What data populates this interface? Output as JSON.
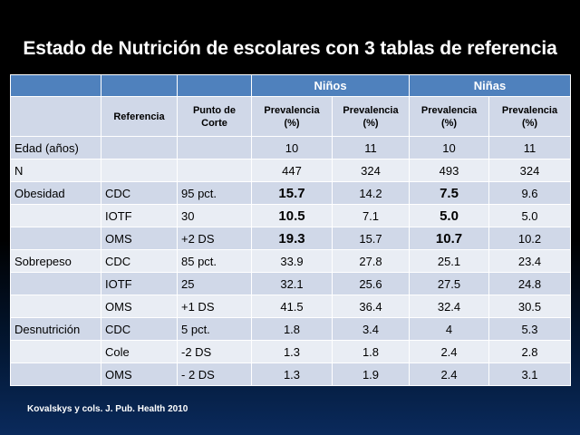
{
  "title": "Estado de Nutrición de escolares con 3 tablas de referencia",
  "table": {
    "group_headers": {
      "ninos": "Niños",
      "ninas": "Niñas"
    },
    "columns": {
      "referencia": "Referencia",
      "punto_corte": "Punto de Corte",
      "prev_ninos_1": "Prevalencia (%)",
      "prev_ninos_2": "Prevalencia (%)",
      "prev_ninas_1": "Prevalencia (%)",
      "prev_ninas_2": "Prevalencia (%)"
    },
    "rows": [
      {
        "label": "Edad (años)",
        "ref": "",
        "cut": "",
        "v": [
          "10",
          "11",
          "10",
          "11"
        ]
      },
      {
        "label": "N",
        "ref": "",
        "cut": "",
        "v": [
          "447",
          "324",
          "493",
          "324"
        ]
      },
      {
        "label": "Obesidad",
        "ref": "CDC",
        "cut": "95 pct.",
        "v": [
          "15.7",
          "14.2",
          "7.5",
          "9.6"
        ],
        "bold": [
          true,
          false,
          true,
          false
        ]
      },
      {
        "label": "",
        "ref": "IOTF",
        "cut": "30",
        "v": [
          "10.5",
          "7.1",
          "5.0",
          "5.0"
        ],
        "bold": [
          true,
          false,
          true,
          false
        ]
      },
      {
        "label": "",
        "ref": "OMS",
        "cut": "+2 DS",
        "v": [
          "19.3",
          "15.7",
          "10.7",
          "10.2"
        ],
        "bold": [
          true,
          false,
          true,
          false
        ]
      },
      {
        "label": "Sobrepeso",
        "ref": "CDC",
        "cut": "85 pct.",
        "v": [
          "33.9",
          "27.8",
          "25.1",
          "23.4"
        ]
      },
      {
        "label": "",
        "ref": "IOTF",
        "cut": "25",
        "v": [
          "32.1",
          "25.6",
          "27.5",
          "24.8"
        ]
      },
      {
        "label": "",
        "ref": "OMS",
        "cut": "+1 DS",
        "v": [
          "41.5",
          "36.4",
          "32.4",
          "30.5"
        ]
      },
      {
        "label": "Desnutrición",
        "ref": "CDC",
        "cut": "5 pct.",
        "v": [
          "1.8",
          "3.4",
          "4",
          "5.3"
        ]
      },
      {
        "label": "",
        "ref": "Cole",
        "cut": "-2 DS",
        "v": [
          "1.3",
          "1.8",
          "2.4",
          "2.8"
        ]
      },
      {
        "label": "",
        "ref": "OMS",
        "cut": "- 2 DS",
        "v": [
          "1.3",
          "1.9",
          "2.4",
          "3.1"
        ]
      }
    ]
  },
  "citation": "Kovalskys y cols.  J. Pub. Health 2010",
  "colors": {
    "header_blue": "#4f81bd",
    "row_band_dark": "#d0d8e8",
    "row_band_light": "#e9edf4",
    "title_text": "#ffffff"
  }
}
